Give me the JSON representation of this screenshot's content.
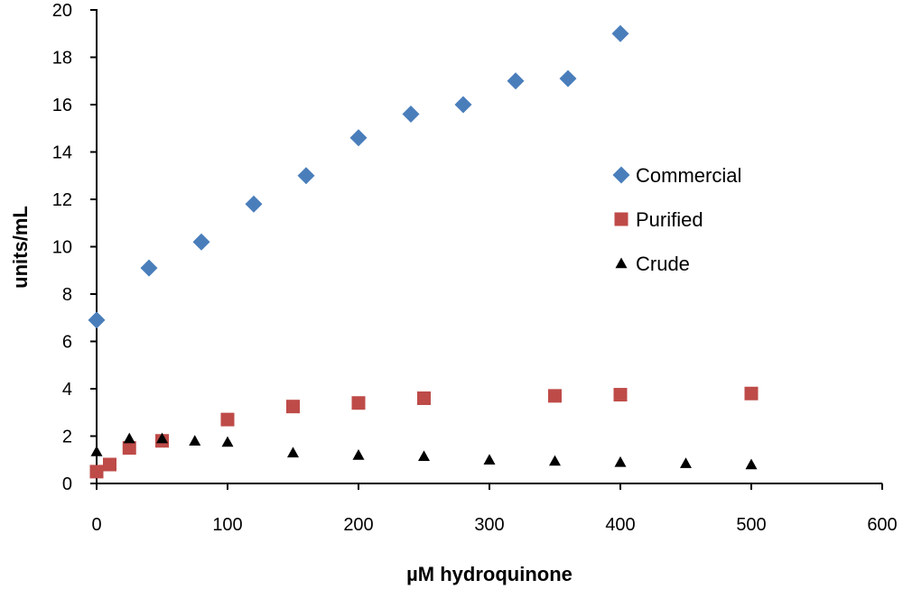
{
  "chart_data": {
    "type": "scatter",
    "title": "",
    "xlabel": "µM hydroquinone",
    "ylabel": "units/mL",
    "xlim": [
      0,
      600
    ],
    "ylim": [
      0,
      20
    ],
    "xticks": [
      "0",
      "100",
      "200",
      "300",
      "400",
      "500",
      "600"
    ],
    "yticks": [
      "0",
      "2",
      "4",
      "6",
      "8",
      "10",
      "12",
      "14",
      "16",
      "18",
      "20"
    ],
    "grid": false,
    "legend_position": "right",
    "series": [
      {
        "name": "Commercial",
        "marker": "diamond",
        "color": "#4a7ebb",
        "x": [
          0,
          40,
          80,
          120,
          160,
          200,
          240,
          280,
          320,
          360,
          400
        ],
        "y": [
          6.9,
          9.1,
          10.2,
          11.8,
          13.0,
          14.6,
          15.6,
          16.0,
          17.0,
          17.1,
          19.0
        ]
      },
      {
        "name": "Purified",
        "marker": "square",
        "color": "#be4b48",
        "x": [
          0,
          10,
          25,
          50,
          100,
          150,
          200,
          250,
          350,
          400,
          500
        ],
        "y": [
          0.5,
          0.8,
          1.5,
          1.8,
          2.7,
          3.25,
          3.4,
          3.6,
          3.7,
          3.75,
          3.8
        ]
      },
      {
        "name": "Crude",
        "marker": "triangle",
        "color": "#000000",
        "x": [
          0,
          25,
          50,
          75,
          100,
          150,
          200,
          250,
          300,
          350,
          400,
          450,
          500
        ],
        "y": [
          1.35,
          1.9,
          1.9,
          1.8,
          1.75,
          1.3,
          1.2,
          1.15,
          1.0,
          0.95,
          0.9,
          0.85,
          0.8
        ]
      }
    ]
  }
}
